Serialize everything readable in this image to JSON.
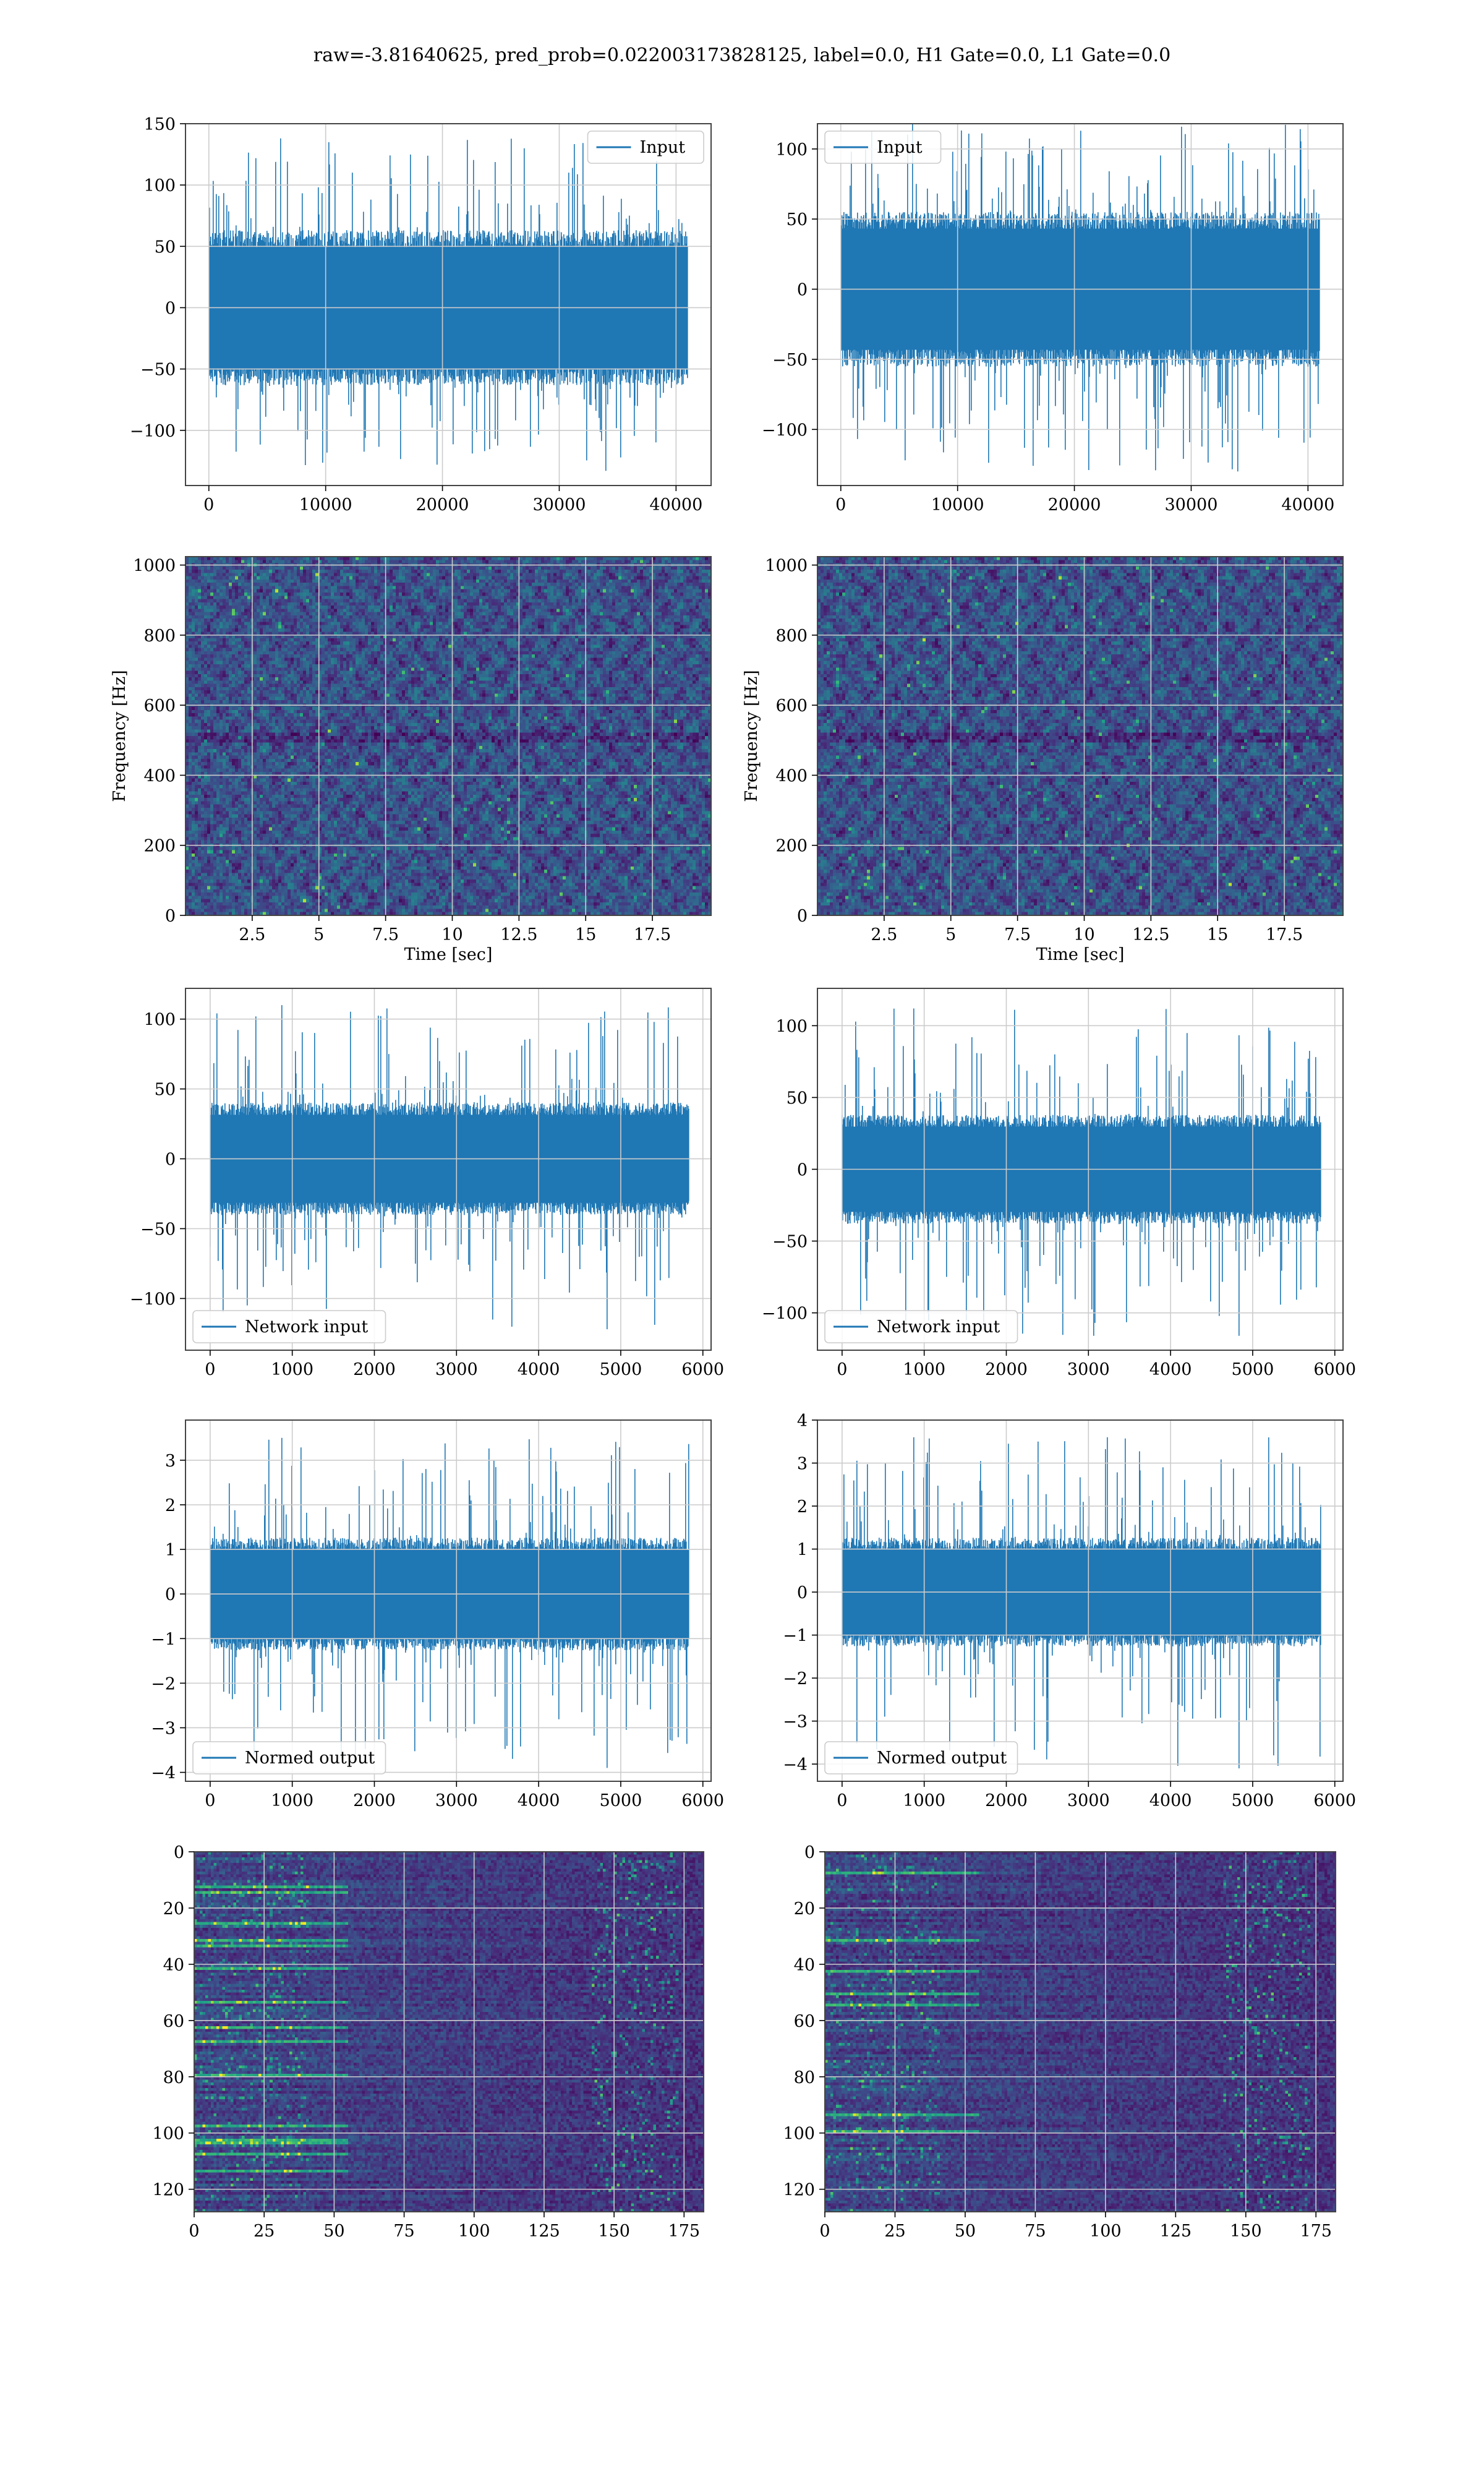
{
  "suptitle": "raw=-3.81640625, pred_prob=0.022003173828125, label=0.0, H1 Gate=0.0, L1 Gate=0.0",
  "colors": {
    "line": "#1f77b4",
    "grid": "#cccccc",
    "frame": "#444444"
  },
  "colormap": "viridis",
  "chart_data": [
    {
      "id": "input-h1",
      "type": "line",
      "legend": "Input",
      "legend_loc": "upper right",
      "xlim": [
        -2000,
        43000
      ],
      "ylim": [
        -145,
        150
      ],
      "xticks": [
        0,
        10000,
        20000,
        30000,
        40000
      ],
      "yticks": [
        -100,
        -50,
        0,
        50,
        100,
        150
      ],
      "series": [
        {
          "n_samples": 40960,
          "x_range": [
            0,
            40960
          ],
          "bulk_amplitude": 55,
          "peak_max": 138,
          "peak_min": -133
        }
      ]
    },
    {
      "id": "input-l1",
      "type": "line",
      "legend": "Input",
      "legend_loc": "upper left",
      "xlim": [
        -2000,
        43000
      ],
      "ylim": [
        -140,
        118
      ],
      "xticks": [
        0,
        10000,
        20000,
        30000,
        40000
      ],
      "yticks": [
        -100,
        -50,
        0,
        50,
        100
      ],
      "series": [
        {
          "n_samples": 40960,
          "x_range": [
            0,
            40960
          ],
          "bulk_amplitude": 48,
          "peak_max": 118,
          "peak_min": -130
        }
      ]
    },
    {
      "id": "spectrogram-h1",
      "type": "heatmap",
      "xlabel": "Time [sec]",
      "ylabel": "Frequency [Hz]",
      "xlim": [
        0,
        19.7
      ],
      "ylim": [
        0,
        1024
      ],
      "xticks": [
        2.5,
        5.0,
        7.5,
        10.0,
        12.5,
        15.0,
        17.5
      ],
      "yticks": [
        0,
        200,
        400,
        600,
        800,
        1000
      ]
    },
    {
      "id": "spectrogram-l1",
      "type": "heatmap",
      "xlabel": "Time [sec]",
      "ylabel": "Frequency [Hz]",
      "xlim": [
        0,
        19.7
      ],
      "ylim": [
        0,
        1024
      ],
      "xticks": [
        2.5,
        5.0,
        7.5,
        10.0,
        12.5,
        15.0,
        17.5
      ],
      "yticks": [
        0,
        200,
        400,
        600,
        800,
        1000
      ]
    },
    {
      "id": "network-input-h1",
      "type": "line",
      "legend": "Network input",
      "legend_loc": "lower left",
      "xlim": [
        -300,
        6100
      ],
      "ylim": [
        -137,
        122
      ],
      "xticks": [
        0,
        1000,
        2000,
        3000,
        4000,
        5000,
        6000
      ],
      "yticks": [
        -100,
        -50,
        0,
        50,
        100
      ],
      "series": [
        {
          "n_samples": 5830,
          "x_range": [
            0,
            5830
          ],
          "bulk_amplitude": 35,
          "peak_max": 110,
          "peak_min": -122
        }
      ]
    },
    {
      "id": "network-input-l1",
      "type": "line",
      "legend": "Network input",
      "legend_loc": "lower left",
      "xlim": [
        -300,
        6100
      ],
      "ylim": [
        -126,
        126
      ],
      "xticks": [
        0,
        1000,
        2000,
        3000,
        4000,
        5000,
        6000
      ],
      "yticks": [
        -100,
        -50,
        0,
        50,
        100
      ],
      "series": [
        {
          "n_samples": 5830,
          "x_range": [
            0,
            5830
          ],
          "bulk_amplitude": 33,
          "peak_max": 112,
          "peak_min": -116
        }
      ]
    },
    {
      "id": "normed-output-h1",
      "type": "line",
      "legend": "Normed output",
      "legend_loc": "lower left",
      "xlim": [
        -300,
        6100
      ],
      "ylim": [
        -4.2,
        3.9
      ],
      "xticks": [
        0,
        1000,
        2000,
        3000,
        4000,
        5000,
        6000
      ],
      "yticks": [
        -4,
        -3,
        -2,
        -1,
        0,
        1,
        2,
        3
      ],
      "series": [
        {
          "n_samples": 5830,
          "x_range": [
            0,
            5830
          ],
          "bulk_amplitude": 1.1,
          "peak_max": 3.5,
          "peak_min": -3.9
        }
      ]
    },
    {
      "id": "normed-output-l1",
      "type": "line",
      "legend": "Normed output",
      "legend_loc": "lower left",
      "xlim": [
        -300,
        6100
      ],
      "ylim": [
        -4.4,
        4.0
      ],
      "xticks": [
        0,
        1000,
        2000,
        3000,
        4000,
        5000,
        6000
      ],
      "yticks": [
        -4,
        -3,
        -2,
        -1,
        0,
        1,
        2,
        3,
        4
      ],
      "series": [
        {
          "n_samples": 5830,
          "x_range": [
            0,
            5830
          ],
          "bulk_amplitude": 1.1,
          "peak_max": 3.6,
          "peak_min": -4.1
        }
      ]
    },
    {
      "id": "features-h1",
      "type": "heatmap",
      "xlim": [
        0,
        182
      ],
      "ylim": [
        128,
        0
      ],
      "xticks": [
        0,
        25,
        50,
        75,
        100,
        125,
        150,
        175
      ],
      "yticks": [
        0,
        20,
        40,
        60,
        80,
        100,
        120
      ]
    },
    {
      "id": "features-l1",
      "type": "heatmap",
      "xlim": [
        0,
        182
      ],
      "ylim": [
        128,
        0
      ],
      "xticks": [
        0,
        25,
        50,
        75,
        100,
        125,
        150,
        175
      ],
      "yticks": [
        0,
        20,
        40,
        60,
        80,
        100,
        120
      ]
    }
  ]
}
